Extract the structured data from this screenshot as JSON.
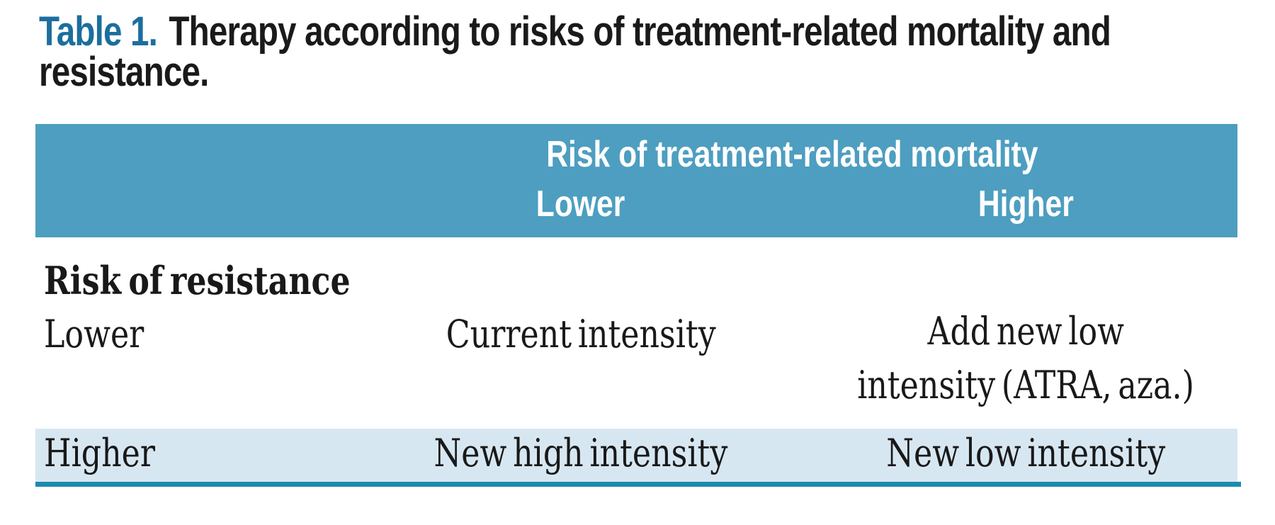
{
  "colors": {
    "header_band_teal": "#4d9ec0",
    "header_text_white": "#ffffff",
    "highlight_row_blue": "#d7e7f2",
    "bottom_rule_teal": "#1b8cac",
    "caption_label_blue": "#1c6e9e",
    "body_text_black": "#191919",
    "page_background": "#ffffff"
  },
  "caption": {
    "label": "Table 1.",
    "line1": "Therapy according to risks of treatment-related mortality and",
    "line2": "resistance."
  },
  "table": {
    "column_group_header": "Risk of treatment-related mortality",
    "column_headers": [
      "Lower",
      "Higher"
    ],
    "row_group_header": "Risk of resistance",
    "rows": [
      {
        "label": "Lower",
        "highlight": false,
        "cells": [
          {
            "lines": [
              "Current intensity"
            ]
          },
          {
            "lines": [
              "Add new low",
              "intensity (ATRA, aza.)"
            ]
          }
        ]
      },
      {
        "label": "Higher",
        "highlight": true,
        "cells": [
          {
            "lines": [
              "New high intensity"
            ]
          },
          {
            "lines": [
              "New low intensity"
            ]
          }
        ]
      }
    ]
  }
}
